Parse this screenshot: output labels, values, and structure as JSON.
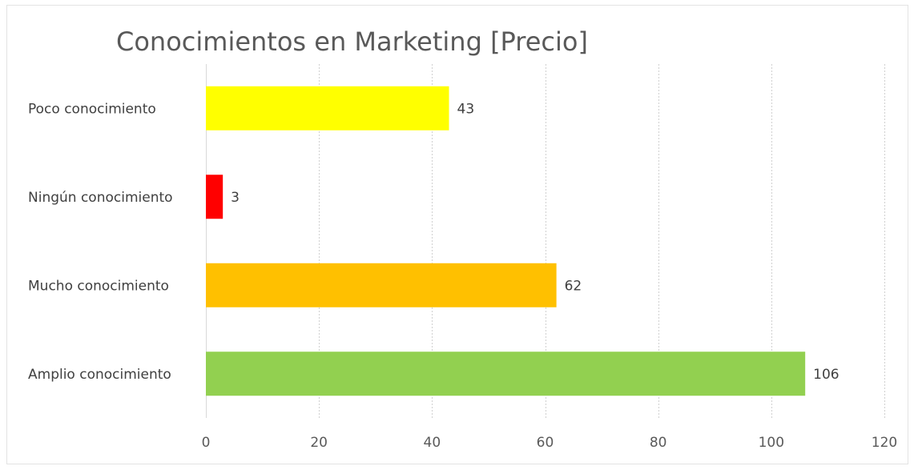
{
  "chart_data": {
    "type": "bar",
    "orientation": "horizontal",
    "title": "Conocimientos en Marketing [Precio]",
    "categories": [
      "Poco conocimiento",
      "Ningún conocimiento",
      "Mucho conocimiento",
      "Amplio conocimiento"
    ],
    "values": [
      43,
      3,
      62,
      106
    ],
    "colors": [
      "#FFFF00",
      "#FF0000",
      "#FFC000",
      "#92D050"
    ],
    "xlim": [
      0,
      120
    ],
    "xticks": [
      0,
      20,
      40,
      60,
      80,
      100,
      120
    ],
    "xtick_labels": [
      "0",
      "20",
      "40",
      "60",
      "80",
      "100",
      "120"
    ],
    "grid": true,
    "data_labels": true,
    "legend": "none"
  }
}
